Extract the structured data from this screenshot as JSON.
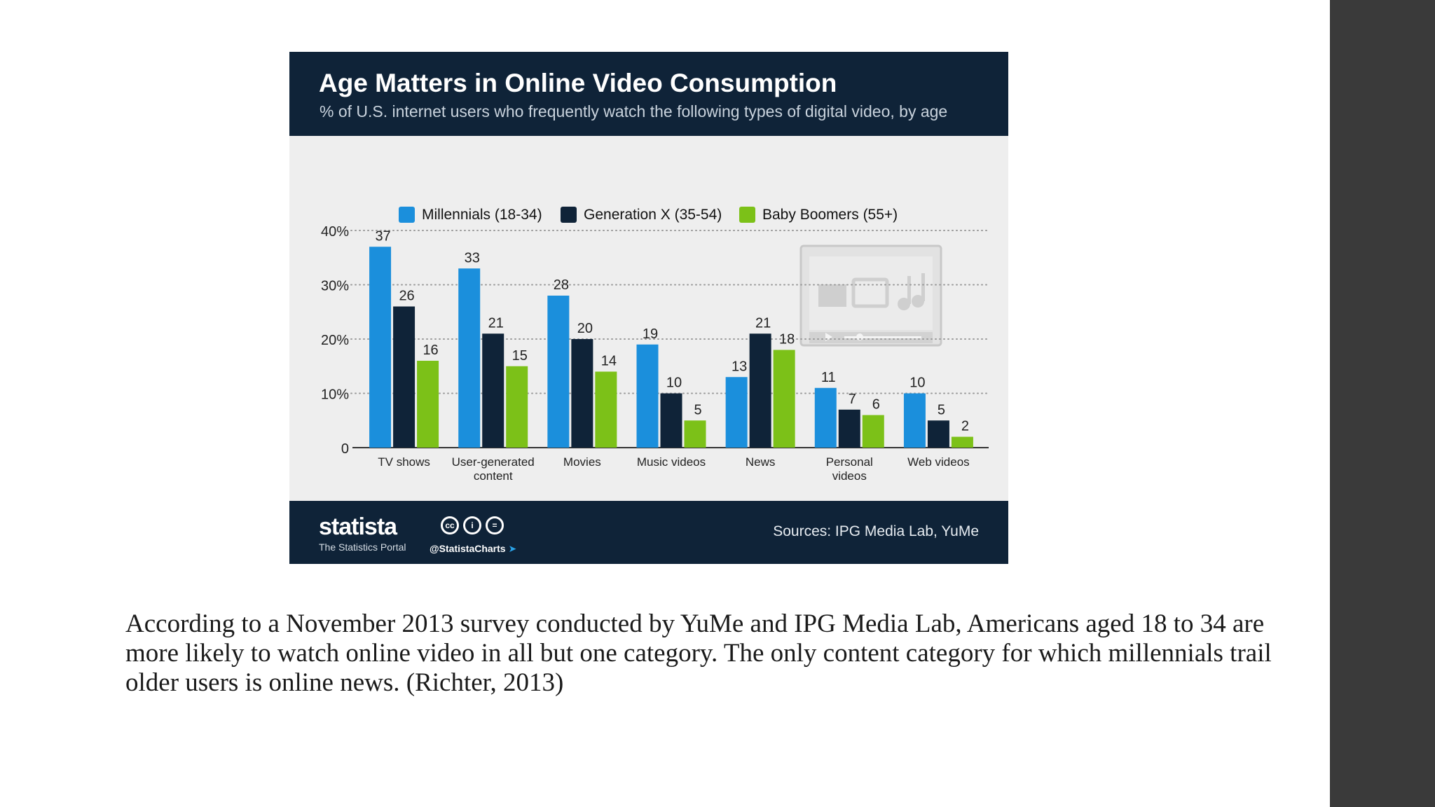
{
  "header": {
    "title": "Age Matters in Online Video Consumption",
    "subtitle": "% of U.S. internet users who frequently watch the following types of digital video, by age"
  },
  "footer": {
    "brand": "statista",
    "brand_tagline": "The Statistics Portal",
    "handle": "@StatistaCharts",
    "source": "Sources: IPG Media Lab, YuMe"
  },
  "caption": "According to a November 2013 survey conducted by YuMe and IPG Media Lab, Americans aged 18 to 34 are more likely to watch online video in all but one category. The only content category for which millennials trail older users is online news. (Richter, 2013)",
  "chart_data": {
    "type": "bar",
    "title": "Age Matters in Online Video Consumption",
    "subtitle": "% of U.S. internet users who frequently watch the following types of digital video, by age",
    "categories": [
      "TV shows",
      "User-generated content",
      "Movies",
      "Music videos",
      "News",
      "Personal videos",
      "Web videos"
    ],
    "category_lines": [
      [
        "TV shows"
      ],
      [
        "User-generated",
        "content"
      ],
      [
        "Movies"
      ],
      [
        "Music videos"
      ],
      [
        "News"
      ],
      [
        "Personal",
        "videos"
      ],
      [
        "Web videos"
      ]
    ],
    "series": [
      {
        "name": "Millennials (18-34)",
        "color": "#1b8fdc",
        "values": [
          37,
          33,
          28,
          19,
          13,
          11,
          10
        ]
      },
      {
        "name": "Generation X (35-54)",
        "color": "#0f2338",
        "values": [
          26,
          21,
          20,
          10,
          21,
          7,
          5
        ]
      },
      {
        "name": "Baby Boomers (55+)",
        "color": "#7cc118",
        "values": [
          16,
          15,
          14,
          5,
          18,
          6,
          2
        ]
      }
    ],
    "ylim": [
      0,
      40
    ],
    "yticks": [
      0,
      10,
      20,
      30,
      40
    ],
    "ytick_labels": [
      "0",
      "10%",
      "20%",
      "30%",
      "40%"
    ],
    "grid": true,
    "legend": "top",
    "xlabel": "",
    "ylabel": ""
  }
}
